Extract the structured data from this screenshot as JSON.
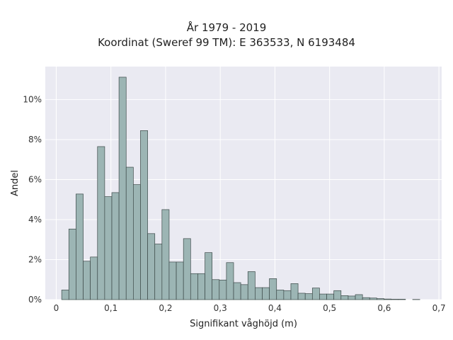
{
  "chart_data": {
    "type": "bar",
    "title": "År 1979 - 2019",
    "subtitle": "Koordinat (Sweref 99 TM): E 363533, N 6193484",
    "xlabel": "Signifikant våghöjd (m)",
    "ylabel": "Andel",
    "xlim": [
      -0.02,
      0.705
    ],
    "ylim": [
      0,
      0.1165
    ],
    "x_ticks": [
      0,
      0.1,
      0.2,
      0.3,
      0.4,
      0.5,
      0.6,
      0.7
    ],
    "x_tick_labels": [
      "0",
      "0,1",
      "0,2",
      "0,3",
      "0,4",
      "0,5",
      "0,6",
      "0,7"
    ],
    "y_ticks": [
      0,
      0.02,
      0.04,
      0.06,
      0.08,
      0.1
    ],
    "y_tick_labels": [
      "0%",
      "2%",
      "4%",
      "6%",
      "8%",
      "10%"
    ],
    "grid": true,
    "bin_start": 0.01,
    "bin_width": 0.0131,
    "values": [
      0.0048,
      0.0353,
      0.0528,
      0.0192,
      0.0213,
      0.0765,
      0.0515,
      0.0535,
      0.1112,
      0.0662,
      0.0575,
      0.0845,
      0.033,
      0.0278,
      0.045,
      0.0188,
      0.0188,
      0.0305,
      0.013,
      0.013,
      0.0235,
      0.01,
      0.0098,
      0.0185,
      0.0085,
      0.0075,
      0.014,
      0.006,
      0.006,
      0.0105,
      0.0048,
      0.0045,
      0.008,
      0.0032,
      0.003,
      0.0058,
      0.0028,
      0.0028,
      0.0045,
      0.002,
      0.0018,
      0.0025,
      0.001,
      0.0008,
      0.0005,
      0.0003,
      0.0002,
      0.0002,
      0.0,
      0.0001,
      0.0
    ],
    "colors": {
      "bar_fill": "#9cb5b4",
      "bar_edge": "#3d4a49",
      "plot_bg": "#eaeaf2",
      "grid": "#ffffff"
    }
  }
}
